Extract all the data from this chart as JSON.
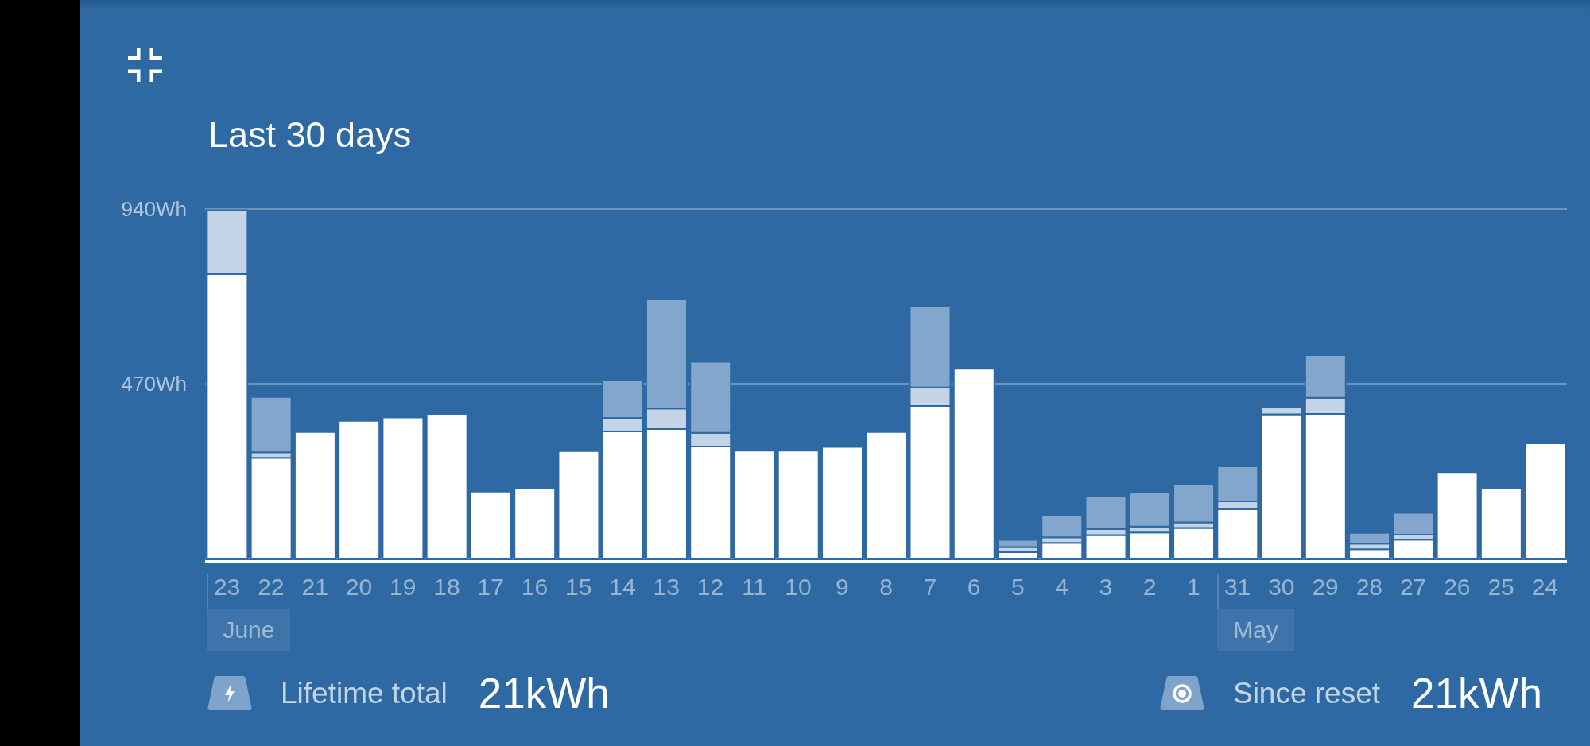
{
  "chart_data": {
    "type": "bar",
    "title": "Last 30 days",
    "categories": [
      "23",
      "22",
      "21",
      "20",
      "19",
      "18",
      "17",
      "16",
      "15",
      "14",
      "13",
      "12",
      "11",
      "10",
      "9",
      "8",
      "7",
      "6",
      "5",
      "4",
      "3",
      "2",
      "1",
      "31",
      "30",
      "29",
      "28",
      "27",
      "26",
      "25",
      "24"
    ],
    "series": [
      {
        "color": "#ffffff",
        "values": [
          765,
          271,
          340,
          370,
          379,
          389,
          180,
          189,
          289,
          342,
          348,
          301,
          290,
          290,
          300,
          340,
          410,
          510,
          17,
          42,
          63,
          70,
          82,
          133,
          388,
          389,
          25,
          51,
          230,
          189,
          310
        ]
      },
      {
        "color": "#c2d4e6",
        "values": [
          172,
          15,
          null,
          null,
          null,
          null,
          null,
          null,
          null,
          36,
          55,
          37,
          null,
          null,
          null,
          null,
          50,
          null,
          14,
          15,
          16,
          16,
          15,
          21,
          20,
          43,
          15,
          13,
          null,
          null,
          null
        ]
      },
      {
        "color": "#83a7cc",
        "values": [
          null,
          148,
          null,
          null,
          null,
          null,
          null,
          null,
          null,
          101,
          294,
          191,
          null,
          null,
          null,
          null,
          219,
          null,
          19,
          60,
          90,
          92,
          102,
          94,
          null,
          115,
          29,
          59,
          null,
          null,
          null
        ]
      }
    ],
    "stacked": true,
    "ylim": [
      0,
      940
    ],
    "yticks": [
      {
        "value": 470,
        "label": "470Wh"
      },
      {
        "value": 940,
        "label": "940Wh"
      }
    ],
    "grid": "y",
    "annotations": [
      "June",
      "May",
      "Lifetime total",
      "21kWh",
      "Since reset",
      "21kWh"
    ]
  }
}
